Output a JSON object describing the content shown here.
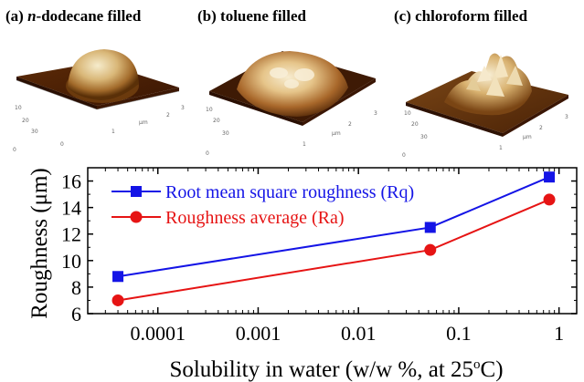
{
  "panels": {
    "a": {
      "prefix": "(a) ",
      "italic": "n",
      "suffix": "-dodecane filled"
    },
    "b": {
      "label": "(b) toluene filled"
    },
    "c": {
      "label": "(c) chloroform filled"
    }
  },
  "afm_axis_labels": {
    "a": {
      "x_ticks": [
        "0",
        "1",
        "2",
        "3"
      ],
      "unit": "μm",
      "y_ticks": [
        "30",
        "20",
        "10"
      ],
      "corner": "0"
    },
    "b": {
      "x_ticks": [
        "1",
        "2",
        "3"
      ],
      "unit": "μm",
      "y_ticks": [
        "30",
        "20",
        "10"
      ],
      "corner": "0"
    },
    "c": {
      "x_ticks": [
        "1",
        "2",
        "3"
      ],
      "unit": "μm",
      "y_ticks": [
        "30",
        "20",
        "10"
      ],
      "corner": "0"
    }
  },
  "colors": {
    "rq": "#1414e6",
    "ra": "#e61414",
    "afm_dark": "#3a1a05",
    "afm_light": "#f4e6c4"
  },
  "chart_data": {
    "type": "line",
    "x_scale": "log",
    "x": [
      4e-05,
      0.052,
      0.8
    ],
    "xlim": [
      2e-05,
      1.5
    ],
    "ylim": [
      6,
      17
    ],
    "ylabel": "Roughness (μm)",
    "xlabel_main": "Solubility in water (w/w %, at 25",
    "xlabel_sup": "o",
    "xlabel_end": "C)",
    "x_ticks": [
      0.0001,
      0.001,
      0.01,
      0.1,
      1
    ],
    "x_tick_labels": [
      "0.0001",
      "0.001",
      "0.01",
      "0.1",
      "1"
    ],
    "y_ticks": [
      6,
      8,
      10,
      12,
      14,
      16
    ],
    "y_tick_labels": [
      "6",
      "8",
      "10",
      "12",
      "14",
      "16"
    ],
    "legend_position": "top-left",
    "series": [
      {
        "name": "Root mean square roughness (Rq)",
        "marker": "square",
        "color": "#1414e6",
        "values": [
          8.8,
          12.5,
          16.3
        ]
      },
      {
        "name": "Roughness average (Ra)",
        "marker": "circle",
        "color": "#e61414",
        "values": [
          7.0,
          10.8,
          14.6
        ]
      }
    ]
  }
}
